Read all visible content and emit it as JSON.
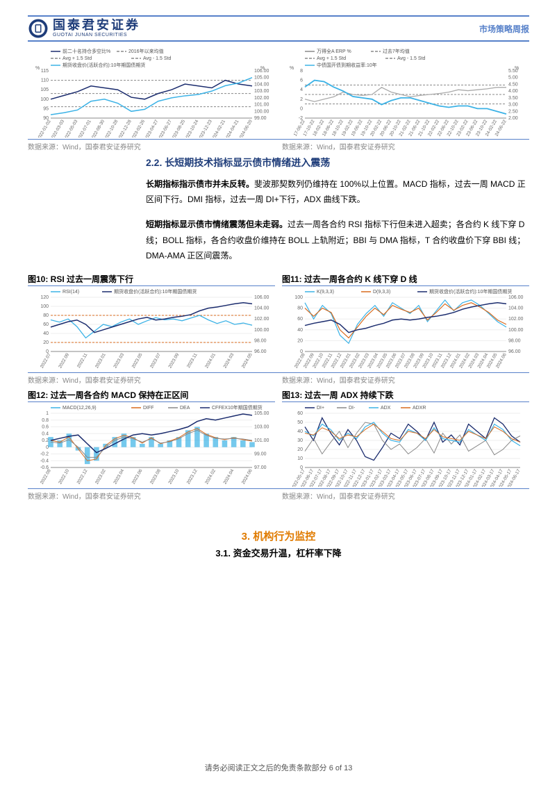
{
  "header": {
    "logo_cn": "国泰君安证券",
    "logo_en": "GUOTAI JUNAN SECURITIES",
    "right": "市场策略周报"
  },
  "chart_top_left": {
    "type": "line",
    "legend": [
      "前二十名持仓多空比%",
      "2016年以来均值",
      "Avg + 1.5 Std",
      "Avg - 1.5 Std",
      "期货收盘价(活跃合约):10年期国债期货"
    ],
    "colors": [
      "#1a2b6d",
      "#888888",
      "#888888",
      "#888888",
      "#3bb2e6"
    ],
    "y1_label": "%",
    "y2_label": "%",
    "y1_ticks": [
      90,
      95,
      100,
      105,
      110,
      115
    ],
    "y2_ticks": [
      99,
      100,
      101,
      102,
      103,
      104,
      105,
      106
    ],
    "x_ticks": [
      "2022-01-02",
      "2022-03-03",
      "2022-05-03",
      "2022-07-01",
      "2022-08-30",
      "2022-10-28",
      "2022-12-28",
      "2023-02-26",
      "2023-04-27",
      "2023-06-27",
      "2023-08-25",
      "2023-10-24",
      "2023-12-23",
      "2024-02-21",
      "2024-04-21",
      "2024-06-20"
    ],
    "series1": [
      100,
      102,
      104,
      107,
      106,
      105,
      101,
      100,
      103,
      105,
      108,
      107,
      106,
      110,
      108,
      107
    ],
    "series_avg": 103,
    "series_up": 110,
    "series_dn": 96,
    "series2": [
      99.5,
      99.8,
      100.2,
      101.5,
      101.8,
      101.2,
      100.0,
      100.3,
      101.5,
      102.0,
      102.3,
      102.5,
      103.0,
      103.8,
      104.2,
      105.0
    ],
    "bg": "#ffffff",
    "grid": "#d9d9d9"
  },
  "chart_top_right": {
    "type": "line",
    "legend": [
      "万得全A ERP %",
      "过去7年均值",
      "Avg + 1.5 Std",
      "Avg - 1.5 Std",
      "中债国开债到期收益率:10年"
    ],
    "colors": [
      "#888888",
      "#888888",
      "#888888",
      "#888888",
      "#3bb2e6"
    ],
    "y1_label": "%",
    "y2_label": "%",
    "y1_ticks": [
      -2.0,
      0.0,
      2.0,
      4.0,
      6.0,
      8.0
    ],
    "y2_ticks": [
      2.0,
      2.5,
      3.0,
      3.5,
      4.0,
      4.5,
      5.0,
      5.5
    ],
    "x_ticks": [
      "17-06-22",
      "17-10-22",
      "18-02-22",
      "18-06-22",
      "18-10-22",
      "19-02-22",
      "19-06-22",
      "19-10-22",
      "20-02-22",
      "20-06-22",
      "20-10-22",
      "21-02-22",
      "21-06-22",
      "21-10-22",
      "22-02-22",
      "22-06-22",
      "22-10-22",
      "23-02-22",
      "23-06-22",
      "23-10-22",
      "24-02-22",
      "24-06-22"
    ],
    "series_erp": [
      2.0,
      1.5,
      2.0,
      2.5,
      3.5,
      3.0,
      2.8,
      3.0,
      4.5,
      3.5,
      3.0,
      2.5,
      2.8,
      3.0,
      3.2,
      3.5,
      4.0,
      3.8,
      4.0,
      4.2,
      4.5,
      4.5
    ],
    "series_avg": 3.0,
    "series_up": 5.0,
    "series_dn": 1.0,
    "series_yield": [
      4.3,
      4.8,
      4.7,
      4.3,
      4.0,
      3.6,
      3.5,
      3.4,
      3.0,
      3.3,
      3.5,
      3.5,
      3.3,
      3.1,
      2.9,
      2.8,
      2.9,
      2.9,
      2.7,
      2.7,
      2.5,
      2.3
    ],
    "bg": "#ffffff",
    "grid": "#d9d9d9"
  },
  "section22": {
    "heading": "2.2. 长短期技术指标显示债市情绪进入震荡",
    "p1_bold": "长期指标指示债市并未反转。",
    "p1_rest": "斐波那契数列仍维持在 100%以上位置。MACD 指标，过去一周 MACD 正区间下行。DMI 指标，过去一周 DI+下行，ADX 曲线下跌。",
    "p2_bold": "短期指标显示债市情绪震荡但未走弱。",
    "p2_rest": "过去一周各合约 RSI 指标下行但未进入超卖；各合约 K 线下穿 D 线；BOLL 指标，各合约收盘价维持在 BOLL 上轨附近；BBI 与 DMA 指标，T 合约收盘价下穿 BBI 线；DMA-AMA 正区间震荡。"
  },
  "fig10": {
    "title": "图10: RSI 过去一周震荡下行"
  },
  "fig11": {
    "title": "图11: 过去一周各合约 K 线下穿 D 线"
  },
  "fig12": {
    "title": "图12: 过去一周各合约 MACD 保持在正区间"
  },
  "fig13": {
    "title": "图13: 过去一周 ADX 持续下跌"
  },
  "chart10": {
    "type": "line",
    "legend": [
      "RSI(14)",
      "期货收盘价(活跃合约):10年期国债期货"
    ],
    "colors": [
      "#3bb2e6",
      "#1a2b6d"
    ],
    "y1_ticks": [
      0,
      20,
      40,
      60,
      80,
      100,
      120
    ],
    "y2_ticks": [
      96.0,
      98.0,
      100.0,
      102.0,
      104.0,
      106.0
    ],
    "x_ticks": [
      "2022.07",
      "2022.09",
      "2022.11",
      "2023.01",
      "2023.03",
      "2023.05",
      "2023.07",
      "2023.09",
      "2023.11",
      "2024.01",
      "2024.03",
      "2024.05"
    ],
    "ref_upper": 80,
    "ref_lower": 20,
    "rsi": [
      70,
      65,
      72,
      55,
      30,
      45,
      60,
      55,
      65,
      72,
      60,
      68,
      75,
      70,
      72,
      68,
      74,
      80,
      70,
      62,
      68,
      60,
      63,
      58
    ],
    "price": [
      100.5,
      101.0,
      101.5,
      101.8,
      101.0,
      99.5,
      100.0,
      100.5,
      101.0,
      101.5,
      102.0,
      102.3,
      101.8,
      102.0,
      102.3,
      102.5,
      102.8,
      103.5,
      104.0,
      104.2,
      104.5,
      104.8,
      105.0,
      104.8
    ],
    "ref_color": "#d86a1e"
  },
  "chart11": {
    "type": "line",
    "legend": [
      "K(9,3,3)",
      "D(9,3,3)",
      "期货收盘价(活跃合约):10年期国债期货"
    ],
    "colors": [
      "#3bb2e6",
      "#d86a1e",
      "#1a2b6d"
    ],
    "y1_ticks": [
      0,
      20,
      40,
      60,
      80,
      100
    ],
    "y2_ticks": [
      96.0,
      98.0,
      100.0,
      102.0,
      104.0,
      106.0
    ],
    "x_ticks": [
      "2022.08",
      "2022.09",
      "2022.10",
      "2022.11",
      "2022.12",
      "2023.01",
      "2023.02",
      "2023.03",
      "2023.04",
      "2023.05",
      "2023.06",
      "2023.07",
      "2023.08",
      "2023.09",
      "2023.10",
      "2023.11",
      "2023.12",
      "2024.01",
      "2024.02",
      "2024.03",
      "2024.04",
      "2024.05",
      "2024.06"
    ],
    "k": [
      90,
      60,
      85,
      70,
      30,
      15,
      50,
      70,
      85,
      65,
      90,
      80,
      70,
      85,
      55,
      75,
      95,
      75,
      90,
      95,
      85,
      70,
      55,
      45
    ],
    "d": [
      80,
      65,
      80,
      72,
      40,
      25,
      45,
      65,
      80,
      68,
      85,
      78,
      72,
      80,
      58,
      72,
      88,
      76,
      85,
      90,
      82,
      72,
      58,
      50
    ],
    "price": [
      100.8,
      101.2,
      101.5,
      101.8,
      101.0,
      99.5,
      100.0,
      100.3,
      100.8,
      101.2,
      101.8,
      102.0,
      101.8,
      102.0,
      102.3,
      102.5,
      102.8,
      103.2,
      103.8,
      104.2,
      104.5,
      104.8,
      105.0,
      104.8
    ]
  },
  "chart12": {
    "type": "line+bar",
    "legend": [
      "MACD(12,26,9)",
      "DIFF",
      "DEA",
      "CFFEX10年期国债期货"
    ],
    "colors": [
      "#3bb2e6",
      "#d86a1e",
      "#888888",
      "#1a2b6d"
    ],
    "y1_ticks": [
      -0.6,
      -0.4,
      -0.2,
      0.0,
      0.2,
      0.4,
      0.6,
      0.8,
      1.0
    ],
    "y2_ticks": [
      97.0,
      99.0,
      101.0,
      103.0,
      105.0
    ],
    "x_ticks": [
      "2022.08",
      "2022.10",
      "2022.12",
      "2023.02",
      "2023.04",
      "2023.06",
      "2023.08",
      "2023.10",
      "2023.12",
      "2024.02",
      "2024.04",
      "2024.06"
    ],
    "macd": [
      0.3,
      0.2,
      0.4,
      -0.1,
      -0.5,
      -0.4,
      0.1,
      0.3,
      0.4,
      0.3,
      0.1,
      0.3,
      0.1,
      0.2,
      0.3,
      0.5,
      0.6,
      0.4,
      0.3,
      0.2,
      0.3,
      0.2,
      0.15
    ],
    "diff": [
      0.2,
      0.15,
      0.3,
      -0.05,
      -0.4,
      -0.35,
      0.05,
      0.25,
      0.35,
      0.28,
      0.12,
      0.28,
      0.1,
      0.18,
      0.28,
      0.45,
      0.55,
      0.38,
      0.28,
      0.22,
      0.28,
      0.22,
      0.18
    ],
    "dea": [
      0.15,
      0.12,
      0.22,
      0.0,
      -0.3,
      -0.3,
      0.0,
      0.2,
      0.3,
      0.25,
      0.15,
      0.25,
      0.12,
      0.16,
      0.25,
      0.4,
      0.5,
      0.35,
      0.26,
      0.24,
      0.26,
      0.24,
      0.2
    ],
    "price": [
      101.0,
      101.3,
      101.6,
      101.8,
      100.5,
      99.2,
      99.8,
      100.5,
      101.2,
      101.8,
      102.0,
      101.8,
      102.0,
      102.3,
      102.6,
      103.0,
      103.8,
      104.2,
      104.0,
      104.3,
      104.6,
      104.9,
      104.7
    ]
  },
  "chart13": {
    "type": "line",
    "legend": [
      "DI+",
      "DI-",
      "ADX",
      "ADXR"
    ],
    "colors": [
      "#1a2b6d",
      "#888888",
      "#3bb2e6",
      "#d86a1e"
    ],
    "y1_ticks": [
      0,
      10,
      20,
      30,
      40,
      50,
      60
    ],
    "x_ticks": [
      "2022-05-17",
      "2022-06-17",
      "2022-07-17",
      "2022-08-17",
      "2022-09-17",
      "2022-10-17",
      "2022-11-17",
      "2022-12-17",
      "2023-01-17",
      "2023-02-17",
      "2023-03-17",
      "2023-04-17",
      "2023-05-17",
      "2023-06-17",
      "2023-07-17",
      "2023-08-17",
      "2023-09-17",
      "2023-10-17",
      "2023-11-17",
      "2023-12-17",
      "2024-01-17",
      "2024-02-17",
      "2024-03-17",
      "2024-04-17",
      "2024-05-17",
      "2024-06-17"
    ],
    "dip": [
      45,
      30,
      55,
      38,
      25,
      42,
      30,
      12,
      8,
      22,
      38,
      32,
      48,
      40,
      30,
      50,
      28,
      36,
      25,
      48,
      40,
      32,
      55,
      48,
      35,
      28
    ],
    "dim": [
      18,
      32,
      15,
      28,
      40,
      22,
      38,
      50,
      48,
      30,
      20,
      26,
      15,
      22,
      32,
      16,
      38,
      26,
      36,
      18,
      24,
      30,
      14,
      20,
      30,
      35
    ],
    "adx": [
      40,
      35,
      48,
      42,
      30,
      38,
      32,
      45,
      50,
      38,
      30,
      28,
      42,
      38,
      30,
      44,
      32,
      30,
      28,
      42,
      36,
      30,
      48,
      42,
      30,
      24
    ],
    "adxr": [
      38,
      36,
      44,
      40,
      32,
      36,
      34,
      42,
      48,
      40,
      32,
      30,
      40,
      38,
      32,
      42,
      34,
      32,
      30,
      40,
      36,
      32,
      45,
      40,
      32,
      28
    ]
  },
  "source": "数据来源：Wind，国泰君安证券研究",
  "section3": {
    "heading": "3. 机构行为监控",
    "sub": "3.1. 资金交易升温，杠杆率下降"
  },
  "footer": "请务必阅读正文之后的免责条款部分 6 of 13"
}
